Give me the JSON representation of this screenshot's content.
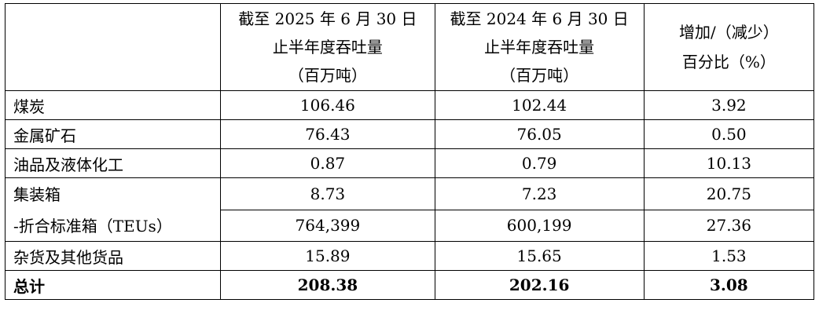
{
  "header": {
    "col1": [
      "截至 2025 年 6 月 30 日",
      "止半年度吞吐量",
      "（百万吨）"
    ],
    "col2": [
      "截至 2024 年 6 月 30 日",
      "止半年度吞吐量",
      "（百万吨）"
    ],
    "col3": [
      "增加/（减少）",
      "百分比（%）"
    ]
  },
  "rows": [
    {
      "label": "煤炭",
      "v2025": "106.46",
      "v2024": "102.44",
      "pct": "3.92"
    },
    {
      "label": "金属矿石",
      "v2025": "76.43",
      "v2024": "76.05",
      "pct": "0.50"
    },
    {
      "label": "油品及液体化工",
      "v2025": "0.87",
      "v2024": "0.79",
      "pct": "10.13"
    }
  ],
  "container": {
    "label_line1": "集装箱",
    "label_line2": "-折合标准箱（TEUs）",
    "row1": {
      "v2025": "8.73",
      "v2024": "7.23",
      "pct": "20.75"
    },
    "row2": {
      "v2025": "764,399",
      "v2024": "600,199",
      "pct": "27.36"
    }
  },
  "general": {
    "label": "杂货及其他货品",
    "v2025": "15.89",
    "v2024": "15.65",
    "pct": "1.53"
  },
  "total": {
    "label": "总计",
    "v2025": "208.38",
    "v2024": "202.16",
    "pct": "3.08"
  }
}
